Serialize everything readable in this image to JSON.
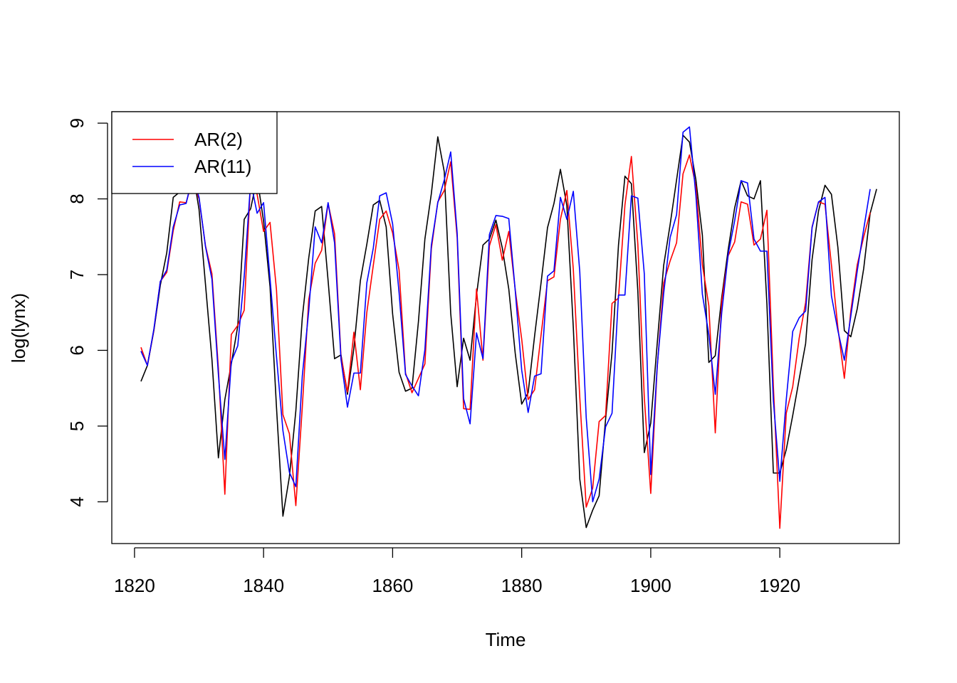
{
  "chart_data": {
    "type": "line",
    "title": "",
    "xlabel": "Time",
    "ylabel": "log(lynx)",
    "xlim": [
      1821,
      1934
    ],
    "ylim": [
      3.66,
      8.94
    ],
    "x_ticks": [
      1820,
      1840,
      1860,
      1880,
      1900,
      1920
    ],
    "y_ticks": [
      4,
      5,
      6,
      7,
      8,
      9
    ],
    "legend": {
      "position": "top-left",
      "entries": [
        {
          "label": "AR(2)",
          "color": "#ff0000"
        },
        {
          "label": "AR(11)",
          "color": "#0000ff"
        }
      ]
    },
    "x_start": 1821,
    "series": [
      {
        "name": "log(lynx)",
        "color": "#000000",
        "values": [
          5.59,
          5.8,
          6.26,
          6.86,
          7.29,
          8.02,
          8.09,
          8.42,
          8.39,
          7.86,
          6.87,
          5.88,
          4.58,
          5.35,
          5.82,
          6.32,
          7.73,
          7.87,
          8.28,
          7.71,
          6.84,
          5.25,
          3.81,
          4.33,
          5.2,
          6.43,
          7.22,
          7.84,
          7.9,
          6.92,
          5.89,
          5.94,
          5.42,
          6.03,
          6.92,
          7.4,
          7.92,
          7.98,
          7.63,
          6.48,
          5.71,
          5.46,
          5.5,
          6.38,
          7.47,
          8.07,
          8.82,
          8.36,
          6.49,
          5.52,
          6.16,
          5.87,
          6.73,
          7.39,
          7.47,
          7.72,
          7.35,
          6.81,
          5.96,
          5.29,
          5.44,
          6.19,
          6.89,
          7.62,
          7.94,
          8.39,
          7.91,
          6.3,
          4.3,
          3.66,
          3.89,
          4.08,
          5.09,
          5.97,
          7.39,
          8.3,
          8.2,
          6.78,
          4.65,
          5.04,
          6.09,
          7.12,
          7.66,
          8.25,
          8.84,
          8.75,
          8.25,
          7.52,
          5.84,
          5.93,
          6.7,
          7.33,
          7.88,
          8.24,
          8.04,
          8.0,
          8.24,
          6.61,
          4.38,
          4.38,
          4.69,
          5.14,
          5.62,
          6.09,
          7.2,
          7.84,
          8.18,
          8.06,
          7.36,
          6.26,
          6.18,
          6.55,
          7.08,
          7.81,
          8.13
        ]
      },
      {
        "name": "AR(2)",
        "color": "#ff0000",
        "values": [
          6.04,
          5.8,
          6.27,
          6.91,
          7.03,
          7.58,
          7.96,
          7.95,
          8.25,
          8.0,
          7.38,
          7.01,
          5.76,
          4.1,
          6.21,
          6.33,
          6.53,
          8.25,
          8.06,
          7.57,
          7.69,
          6.8,
          5.15,
          4.9,
          3.95,
          5.25,
          6.67,
          7.15,
          7.32,
          7.94,
          7.54,
          5.92,
          5.45,
          6.24,
          5.48,
          6.5,
          7.12,
          7.73,
          7.84,
          7.55,
          7.06,
          5.7,
          5.44,
          5.63,
          5.82,
          7.34,
          7.96,
          8.11,
          8.49,
          7.49,
          5.23,
          5.22,
          6.81,
          5.87,
          7.38,
          7.66,
          7.19,
          7.57,
          6.8,
          6.15,
          5.35,
          5.48,
          6.2,
          6.92,
          6.97,
          7.73,
          8.11,
          7.07,
          5.38,
          3.93,
          4.18,
          5.06,
          5.14,
          6.62,
          6.69,
          7.92,
          8.56,
          7.4,
          5.38,
          4.11,
          5.77,
          6.89,
          7.18,
          7.42,
          8.33,
          8.58,
          8.16,
          7.13,
          6.59,
          4.91,
          6.65,
          7.25,
          7.43,
          7.96,
          7.93,
          7.39,
          7.47,
          7.85,
          5.53,
          3.65,
          5.17,
          5.52,
          6.16,
          6.63,
          7.63,
          7.96,
          7.93,
          7.13,
          6.3,
          5.63,
          6.52,
          7.13,
          7.5,
          7.82
        ]
      },
      {
        "name": "AR(11)",
        "color": "#0000ff",
        "values": [
          5.99,
          5.8,
          6.28,
          6.91,
          7.06,
          7.63,
          7.92,
          7.94,
          8.3,
          8.02,
          7.37,
          6.94,
          5.68,
          4.56,
          5.85,
          6.06,
          6.98,
          8.23,
          7.81,
          7.95,
          6.95,
          5.92,
          4.94,
          4.39,
          4.2,
          5.66,
          6.52,
          7.63,
          7.42,
          7.95,
          7.42,
          5.88,
          5.25,
          5.7,
          5.7,
          6.89,
          7.35,
          8.04,
          8.08,
          7.67,
          6.76,
          5.68,
          5.53,
          5.4,
          6.01,
          7.39,
          7.95,
          8.25,
          8.62,
          7.55,
          5.36,
          5.03,
          6.23,
          5.89,
          7.53,
          7.78,
          7.77,
          7.74,
          6.79,
          5.74,
          5.18,
          5.66,
          5.69,
          6.98,
          7.05,
          8.02,
          7.73,
          8.1,
          7.04,
          5.11,
          4.0,
          4.3,
          4.99,
          5.17,
          6.73,
          6.73,
          8.04,
          8.01,
          7.01,
          4.36,
          5.79,
          6.75,
          7.49,
          7.79,
          8.88,
          8.95,
          8.04,
          6.74,
          6.21,
          5.42,
          6.5,
          7.27,
          7.71,
          8.24,
          8.21,
          7.47,
          7.31,
          7.31,
          5.34,
          4.27,
          5.35,
          6.25,
          6.43,
          6.52,
          7.62,
          7.96,
          8.02,
          6.72,
          6.26,
          5.87,
          6.45,
          7.05,
          7.6,
          8.13
        ]
      }
    ]
  }
}
